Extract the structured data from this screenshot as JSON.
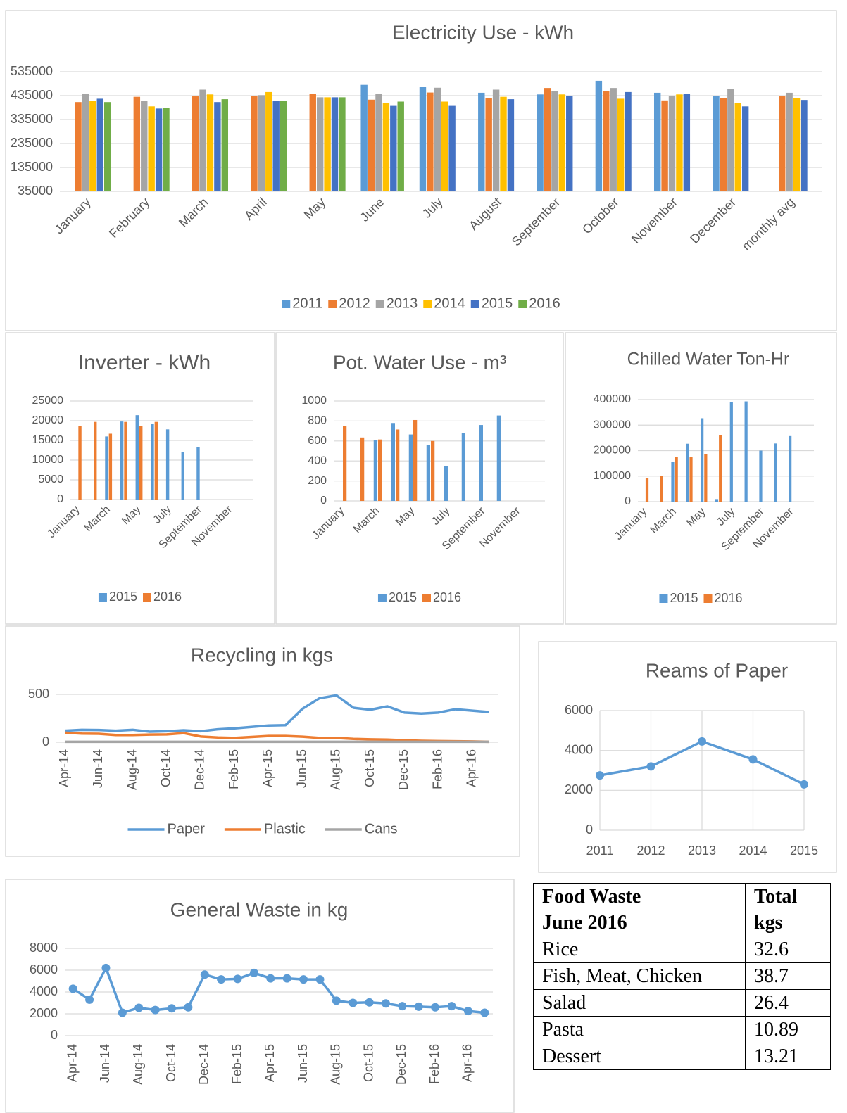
{
  "chart_data": [
    {
      "type": "bar",
      "title": "Electricity Use - kWh",
      "categories": [
        "January",
        "February",
        "March",
        "April",
        "May",
        "June",
        "July",
        "August",
        "September",
        "October",
        "November",
        "December",
        "monthly avg"
      ],
      "series": [
        {
          "name": "2011",
          "color": "#5b9bd5",
          "values": [
            null,
            null,
            null,
            null,
            null,
            480000,
            472000,
            447000,
            440000,
            497000,
            447000,
            435000,
            null
          ]
        },
        {
          "name": "2012",
          "color": "#ed7d31",
          "values": [
            408000,
            430000,
            432000,
            433000,
            443000,
            418000,
            448000,
            425000,
            467000,
            455000,
            415000,
            425000,
            432000
          ]
        },
        {
          "name": "2013",
          "color": "#a5a5a5",
          "values": [
            443000,
            413000,
            460000,
            437000,
            428000,
            443000,
            468000,
            460000,
            455000,
            467000,
            432000,
            462000,
            447000
          ]
        },
        {
          "name": "2014",
          "color": "#ffc000",
          "values": [
            412000,
            390000,
            440000,
            450000,
            428000,
            405000,
            410000,
            430000,
            440000,
            422000,
            440000,
            405000,
            425000
          ]
        },
        {
          "name": "2015",
          "color": "#4472c4",
          "values": [
            422000,
            381000,
            408000,
            413000,
            428000,
            395000,
            395000,
            420000,
            435000,
            450000,
            443000,
            390000,
            417000
          ]
        },
        {
          "name": "2016",
          "color": "#70ad47",
          "values": [
            408000,
            385000,
            420000,
            413000,
            428000,
            410000,
            null,
            null,
            null,
            null,
            null,
            null,
            null
          ]
        }
      ],
      "ylim": [
        35000,
        535000
      ],
      "yticks": [
        35000,
        135000,
        235000,
        335000,
        435000,
        535000
      ],
      "grid": true,
      "legend": "bottom"
    },
    {
      "type": "bar",
      "title": "Inverter - kWh",
      "categories": [
        "January",
        null,
        "March",
        null,
        "May",
        null,
        "July",
        null,
        "September",
        null,
        "November",
        null
      ],
      "series": [
        {
          "name": "2015",
          "color": "#5b9bd5",
          "values": [
            null,
            null,
            16000,
            19800,
            21400,
            19200,
            17800,
            12000,
            13300,
            null,
            null,
            null
          ]
        },
        {
          "name": "2016",
          "color": "#ed7d31",
          "values": [
            18700,
            19700,
            16700,
            19700,
            18700,
            19700,
            null,
            null,
            null,
            null,
            null,
            null
          ]
        }
      ],
      "ylim": [
        0,
        25000
      ],
      "yticks": [
        0,
        5000,
        10000,
        15000,
        20000,
        25000
      ],
      "grid": true,
      "legend": "bottom"
    },
    {
      "type": "bar",
      "title": "Pot. Water Use - m³",
      "categories": [
        "January",
        null,
        "March",
        null,
        "May",
        null,
        "July",
        null,
        "September",
        null,
        "November",
        null
      ],
      "series": [
        {
          "name": "2015",
          "color": "#5b9bd5",
          "values": [
            null,
            null,
            610,
            780,
            665,
            560,
            350,
            680,
            760,
            855,
            null,
            null
          ]
        },
        {
          "name": "2016",
          "color": "#ed7d31",
          "values": [
            750,
            635,
            615,
            715,
            810,
            600,
            null,
            null,
            null,
            null,
            null,
            null
          ]
        }
      ],
      "ylim": [
        0,
        1000
      ],
      "yticks": [
        0,
        200,
        400,
        600,
        800,
        1000
      ],
      "grid": true,
      "legend": "bottom"
    },
    {
      "type": "bar",
      "title": "Chilled Water Ton-Hr",
      "categories": [
        "January",
        null,
        "March",
        null,
        "May",
        null,
        "July",
        null,
        "September",
        null,
        "November",
        null
      ],
      "series": [
        {
          "name": "2015",
          "color": "#5b9bd5",
          "values": [
            null,
            null,
            155000,
            227000,
            327000,
            10000,
            390000,
            393000,
            200000,
            228000,
            257000,
            null
          ]
        },
        {
          "name": "2016",
          "color": "#ed7d31",
          "values": [
            93000,
            100000,
            175000,
            175000,
            187000,
            262000,
            null,
            null,
            null,
            null,
            null,
            null
          ]
        }
      ],
      "ylim": [
        0,
        400000
      ],
      "yticks": [
        0,
        100000,
        200000,
        300000,
        400000
      ],
      "grid": true,
      "legend": "bottom"
    },
    {
      "type": "line",
      "title": "Recycling in kgs",
      "categories": [
        "Apr-14",
        null,
        "Jun-14",
        null,
        "Aug-14",
        null,
        "Oct-14",
        null,
        "Dec-14",
        null,
        "Feb-15",
        null,
        "Apr-15",
        null,
        "Jun-15",
        null,
        "Aug-15",
        null,
        "Oct-15",
        null,
        "Dec-15",
        null,
        "Feb-16",
        null,
        "Apr-16",
        null
      ],
      "series": [
        {
          "name": "Paper",
          "color": "#5b9bd5",
          "values": [
            120,
            130,
            128,
            120,
            130,
            110,
            115,
            125,
            115,
            135,
            145,
            160,
            175,
            178,
            350,
            460,
            490,
            360,
            340,
            375,
            310,
            300,
            310,
            345,
            330,
            315
          ]
        },
        {
          "name": "Plastic",
          "color": "#ed7d31",
          "values": [
            100,
            90,
            88,
            75,
            75,
            80,
            82,
            95,
            60,
            50,
            45,
            55,
            65,
            65,
            58,
            45,
            45,
            35,
            30,
            28,
            20,
            15,
            12,
            10,
            8,
            5
          ]
        },
        {
          "name": "Cans",
          "color": "#a5a5a5",
          "values": [
            5,
            5,
            5,
            5,
            5,
            5,
            5,
            5,
            5,
            5,
            5,
            5,
            5,
            5,
            5,
            5,
            5,
            5,
            5,
            5,
            5,
            5,
            5,
            5,
            5,
            5
          ]
        }
      ],
      "ylim": [
        0,
        500
      ],
      "yticks": [
        0,
        500
      ],
      "grid": true,
      "legend": "bottom"
    },
    {
      "type": "line",
      "title": "Reams of Paper",
      "categories": [
        "2011",
        "2012",
        "2013",
        "2014",
        "2015"
      ],
      "series": [
        {
          "name": "Reams",
          "color": "#5b9bd5",
          "values": [
            2750,
            3200,
            4450,
            3550,
            2300
          ]
        }
      ],
      "ylim": [
        0,
        6000
      ],
      "yticks": [
        0,
        2000,
        4000,
        6000
      ],
      "grid": true,
      "markers": true
    },
    {
      "type": "line",
      "title": "General Waste in kg",
      "categories": [
        "Apr-14",
        null,
        "Jun-14",
        null,
        "Aug-14",
        null,
        "Oct-14",
        null,
        "Dec-14",
        null,
        "Feb-15",
        null,
        "Apr-15",
        null,
        "Jun-15",
        null,
        "Aug-15",
        null,
        "Oct-15",
        null,
        "Dec-15",
        null,
        "Feb-16",
        null,
        "Apr-16",
        null
      ],
      "series": [
        {
          "name": "General Waste",
          "color": "#5b9bd5",
          "values": [
            4300,
            3300,
            6200,
            2100,
            2550,
            2350,
            2500,
            2600,
            5600,
            5150,
            5200,
            5750,
            5250,
            5250,
            5150,
            5150,
            3200,
            3000,
            3050,
            2950,
            2700,
            2650,
            2600,
            2700,
            2250,
            2100
          ]
        }
      ],
      "ylim": [
        0,
        8000
      ],
      "yticks": [
        0,
        2000,
        4000,
        6000,
        8000
      ],
      "grid": true,
      "markers": true
    }
  ],
  "table": {
    "columns": [
      [
        "Food Waste",
        "June 2016"
      ],
      [
        "Total",
        "kgs"
      ]
    ],
    "rows": [
      [
        "Rice",
        32.6
      ],
      [
        "Fish, Meat, Chicken",
        38.7
      ],
      [
        "Salad",
        26.4
      ],
      [
        "Pasta",
        10.89
      ],
      [
        "Dessert",
        13.21
      ]
    ]
  }
}
